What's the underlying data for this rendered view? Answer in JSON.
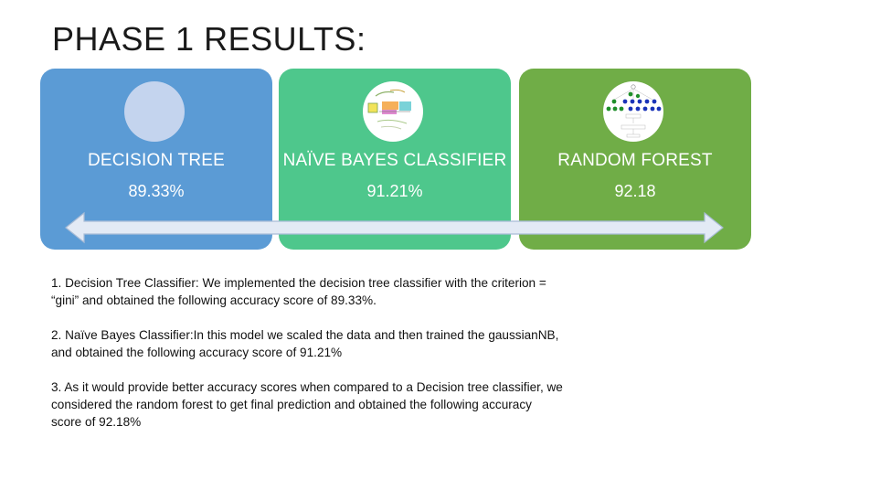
{
  "slide": {
    "title": "PHASE 1 RESULTS:"
  },
  "cards": [
    {
      "name": "DECISION TREE",
      "score": "89.33%",
      "color": "#5b9bd5"
    },
    {
      "name": "NAÏVE BAYES CLASSIFIER",
      "score": "91.21%",
      "color": "#4ec78c"
    },
    {
      "name": "RANDOM FOREST",
      "score": "92.18",
      "color": "#70ad47"
    }
  ],
  "notes": [
    "1. Decision Tree Classifier: We implemented the decision tree classifier with the criterion = “gini” and obtained the following accuracy score of 89.33%.",
    "2. Naïve Bayes Classifier:In this model we scaled the data and then trained the gaussianNB, and obtained the following accuracy score of 91.21%",
    "3. As it would provide better accuracy scores when compared to a Decision tree classifier, we considered the random forest to get final prediction and obtained the following accuracy score of 92.18%"
  ]
}
